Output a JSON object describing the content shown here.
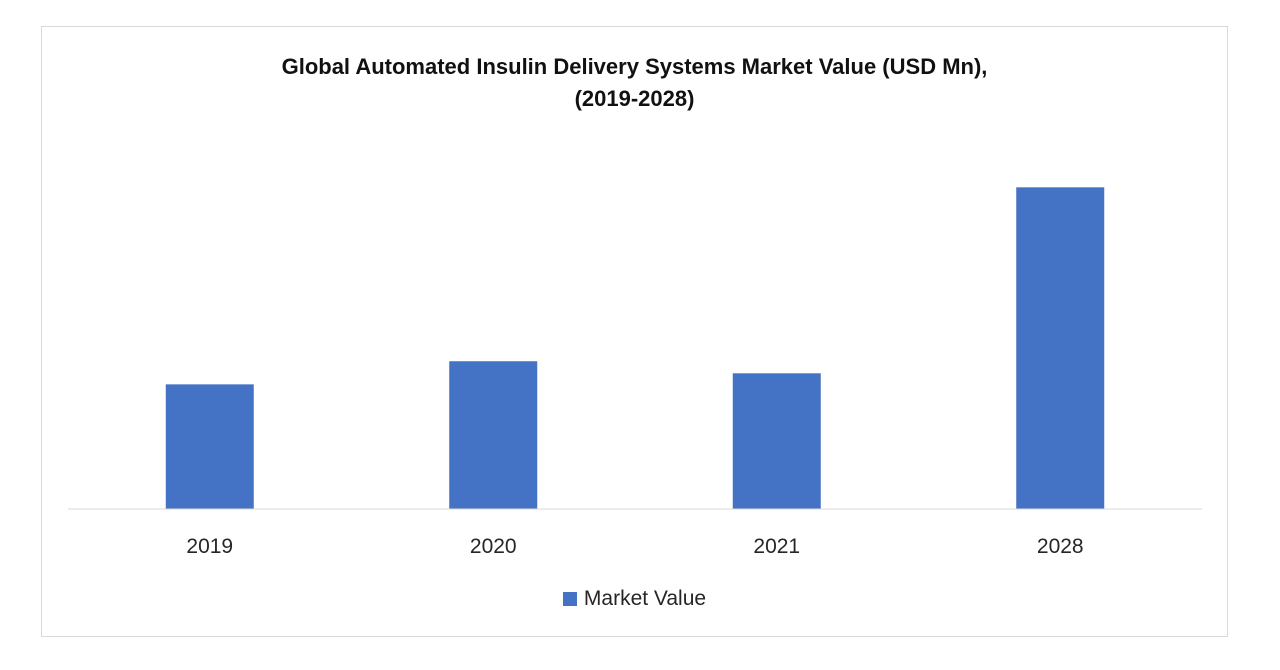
{
  "chart_data": {
    "type": "bar",
    "title_line1": "Global Automated Insulin Delivery Systems Market Value (USD Mn),",
    "title_line2": "(2019-2028)",
    "categories": [
      "2019",
      "2020",
      "2021",
      "2028"
    ],
    "series": [
      {
        "name": "Market Value",
        "values": [
          124,
          147,
          135,
          320
        ],
        "color": "#4472C4"
      }
    ],
    "xlabel": "",
    "ylabel": "",
    "ylim": [
      0,
      380
    ],
    "grid": false,
    "legend_position": "bottom"
  }
}
